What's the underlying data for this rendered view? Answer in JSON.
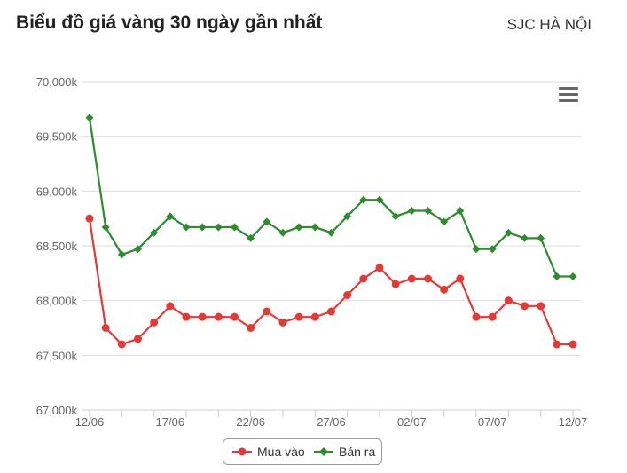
{
  "header": {
    "title": "Biểu đồ giá vàng 30 ngày gần nhất",
    "location": "SJC HÀ NỘI"
  },
  "menu": {
    "icon": "hamburger-menu-icon"
  },
  "colors": {
    "mua_vao": "#e53935",
    "ban_ra": "#2e8b2e",
    "grid": "#dddddd",
    "axis": "#cccccc"
  },
  "chart_data": {
    "type": "line",
    "title": "Biểu đồ giá vàng 30 ngày gần nhất",
    "xlabel": "",
    "ylabel": "",
    "ylim": [
      67000,
      70000
    ],
    "yticks": [
      67000,
      67500,
      68000,
      68500,
      69000,
      69500,
      70000
    ],
    "ytick_labels": [
      "67,000k",
      "67,500k",
      "68,000k",
      "68,500k",
      "69,000k",
      "69,500k",
      "70,000k"
    ],
    "x_tick_labels": [
      {
        "index": 0,
        "label": "12/06"
      },
      {
        "index": 5,
        "label": "17/06"
      },
      {
        "index": 10,
        "label": "22/06"
      },
      {
        "index": 15,
        "label": "27/06"
      },
      {
        "index": 20,
        "label": "02/07"
      },
      {
        "index": 25,
        "label": "07/07"
      },
      {
        "index": 30,
        "label": "12/07"
      }
    ],
    "x": [
      "12/06",
      "13/06",
      "14/06",
      "15/06",
      "16/06",
      "17/06",
      "18/06",
      "19/06",
      "20/06",
      "21/06",
      "22/06",
      "23/06",
      "24/06",
      "25/06",
      "26/06",
      "27/06",
      "28/06",
      "29/06",
      "30/06",
      "01/07",
      "02/07",
      "03/07",
      "04/07",
      "05/07",
      "06/07",
      "07/07",
      "08/07",
      "09/07",
      "10/07",
      "11/07",
      "12/07"
    ],
    "grid": true,
    "legend_position": "bottom-center",
    "series": [
      {
        "name": "Mua vào",
        "color": "#e53935",
        "marker": "circle",
        "points": [
          [
            0,
            68750
          ],
          [
            1,
            67750
          ],
          [
            2,
            67600
          ],
          [
            3,
            67650
          ],
          [
            4,
            67800
          ],
          [
            5,
            67950
          ],
          [
            6,
            67850
          ],
          [
            7,
            67850
          ],
          [
            8,
            67850
          ],
          [
            9,
            67850
          ],
          [
            10,
            67750
          ],
          [
            11,
            67900
          ],
          [
            12,
            67800
          ],
          [
            13,
            67850
          ],
          [
            14,
            67850
          ],
          [
            15,
            67900
          ],
          [
            16,
            68050
          ],
          [
            17,
            68200
          ],
          [
            18,
            68300
          ],
          [
            19,
            68150
          ],
          [
            20,
            68200
          ],
          [
            21,
            68200
          ],
          [
            22,
            68100
          ],
          [
            23,
            68200
          ],
          [
            24,
            67850
          ],
          [
            25,
            67850
          ],
          [
            26,
            68000
          ],
          [
            27,
            67950
          ],
          [
            28,
            67950
          ],
          [
            29,
            67600
          ],
          [
            30,
            67600
          ]
        ]
      },
      {
        "name": "Bán ra",
        "color": "#2e8b2e",
        "marker": "diamond",
        "points": [
          [
            0,
            69670
          ],
          [
            1,
            68670
          ],
          [
            2,
            68420
          ],
          [
            3,
            68470
          ],
          [
            4,
            68620
          ],
          [
            5,
            68770
          ],
          [
            6,
            68670
          ],
          [
            7,
            68670
          ],
          [
            8,
            68670
          ],
          [
            9,
            68670
          ],
          [
            10,
            68570
          ],
          [
            11,
            68720
          ],
          [
            12,
            68620
          ],
          [
            13,
            68670
          ],
          [
            14,
            68670
          ],
          [
            15,
            68620
          ],
          [
            16,
            68770
          ],
          [
            17,
            68920
          ],
          [
            18,
            68920
          ],
          [
            19,
            68770
          ],
          [
            20,
            68820
          ],
          [
            21,
            68820
          ],
          [
            22,
            68720
          ],
          [
            23,
            68820
          ],
          [
            24,
            68470
          ],
          [
            25,
            68470
          ],
          [
            26,
            68620
          ],
          [
            27,
            68570
          ],
          [
            28,
            68570
          ],
          [
            29,
            68220
          ],
          [
            30,
            68220
          ]
        ]
      }
    ]
  }
}
